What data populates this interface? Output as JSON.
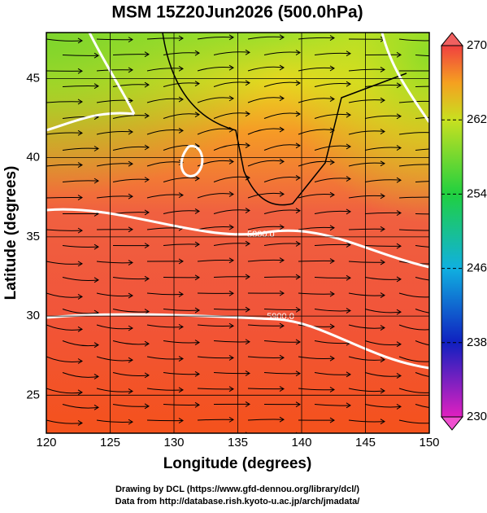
{
  "title": "MSM 15Z20Jun2026 (500.0hPa)",
  "x_axis": {
    "label": "Longitude (degrees)",
    "lim": [
      120,
      150
    ],
    "ticks": [
      120,
      125,
      130,
      135,
      140,
      145,
      150
    ]
  },
  "y_axis": {
    "label": "Latitude  (degrees)",
    "lim": [
      22.6,
      47.9
    ],
    "ticks": [
      25,
      30,
      35,
      40,
      45
    ]
  },
  "colorbar": {
    "lim": [
      230,
      270
    ],
    "ticks": [
      230,
      238,
      246,
      254,
      262,
      270
    ]
  },
  "contours": [
    "5800.0",
    "5900.0"
  ],
  "footer": [
    "Drawing by DCL (https://www.gfd-dennou.org/library/dcl/)",
    "Data from http://database.rish.kyoto-u.ac.jp/arch/jmadata/"
  ]
}
